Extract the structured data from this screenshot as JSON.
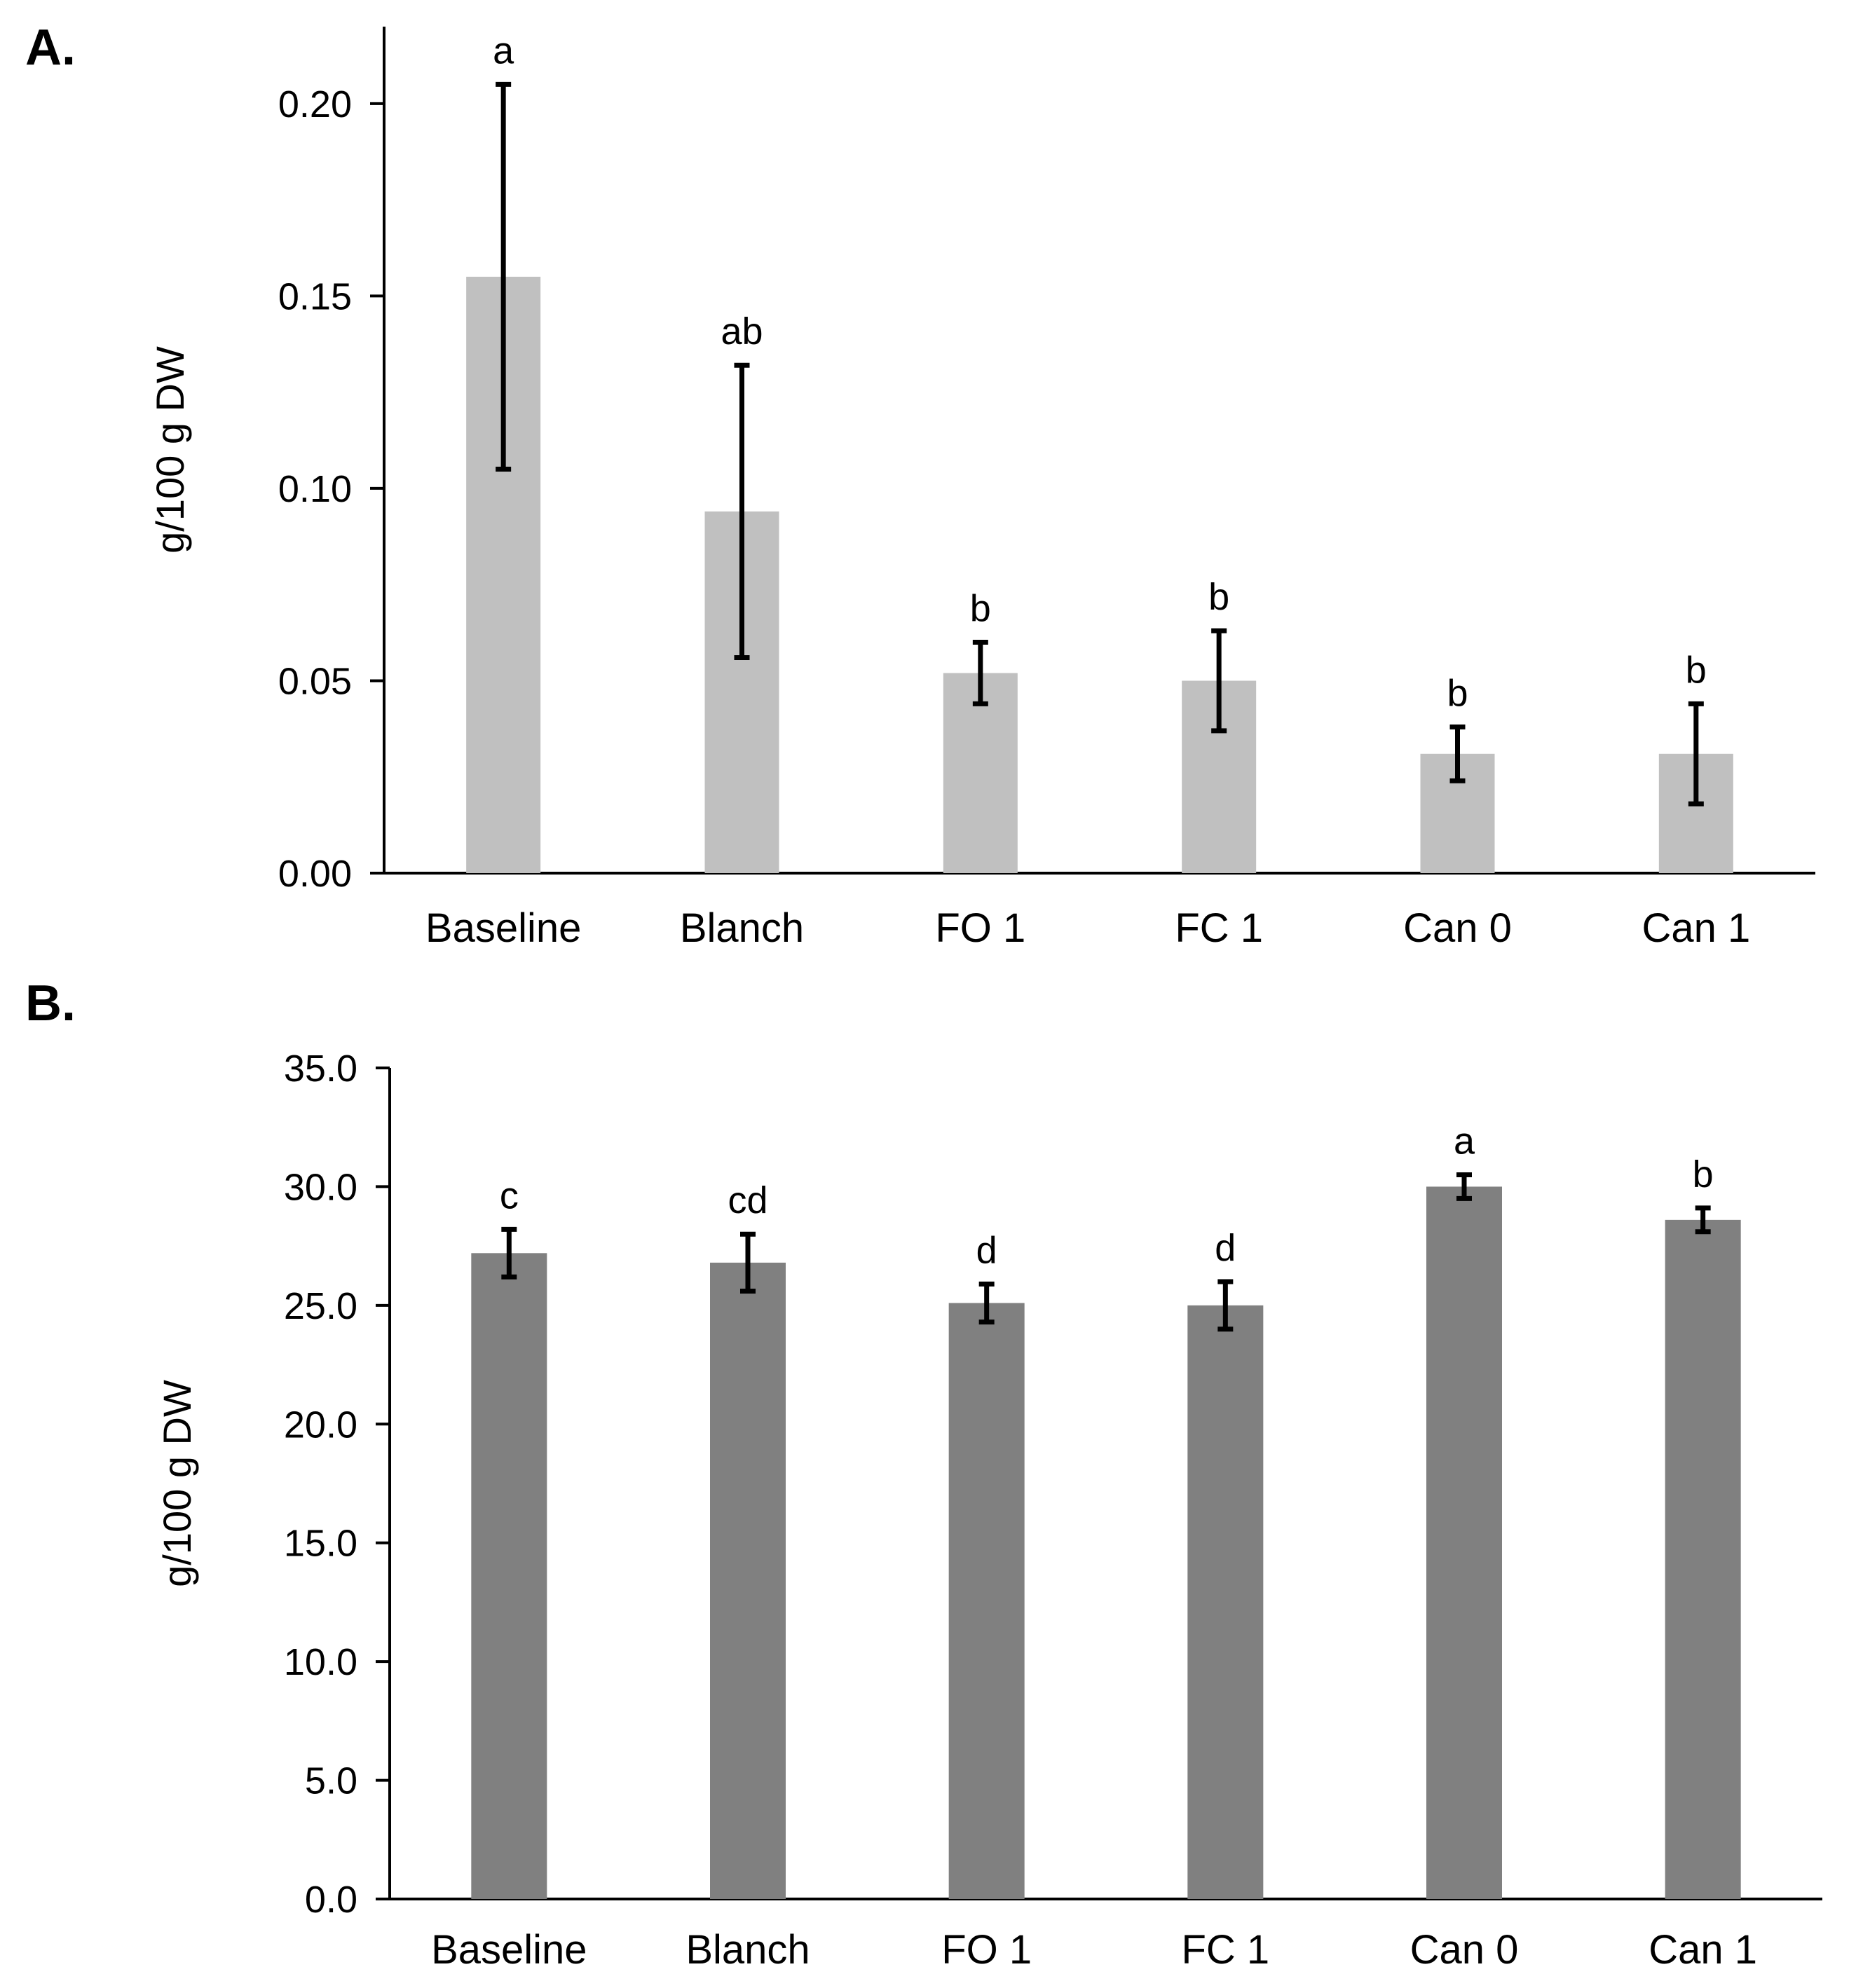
{
  "figure": {
    "panels": [
      "A.",
      "B."
    ]
  },
  "chart_data": [
    {
      "type": "bar",
      "panel_label": "A.",
      "title": "",
      "xlabel": "",
      "ylabel": "g/100 g DW",
      "ylim": [
        0,
        0.22
      ],
      "yticks": [
        0,
        0.05,
        0.1,
        0.15,
        0.2
      ],
      "ytick_labels": [
        "0.00",
        "0.05",
        "0.10",
        "0.15",
        "0.20"
      ],
      "categories": [
        "Baseline",
        "Blanch",
        "FO 1",
        "FC 1",
        "Can 0",
        "Can 1"
      ],
      "values": [
        0.155,
        0.094,
        0.052,
        0.05,
        0.031,
        0.031
      ],
      "error": [
        0.05,
        0.038,
        0.008,
        0.013,
        0.007,
        0.013
      ],
      "significance": [
        "a",
        "ab",
        "b",
        "b",
        "b",
        "b"
      ],
      "bar_color": "#c0c0c0",
      "grid": false,
      "legend": "none"
    },
    {
      "type": "bar",
      "panel_label": "B.",
      "title": "",
      "xlabel": "",
      "ylabel": "g/100 g DW",
      "ylim": [
        0,
        35
      ],
      "yticks": [
        0,
        5,
        10,
        15,
        20,
        25,
        30,
        35
      ],
      "ytick_labels": [
        "0.0",
        "5.0",
        "10.0",
        "15.0",
        "20.0",
        "25.0",
        "30.0",
        "35.0"
      ],
      "categories": [
        "Baseline",
        "Blanch",
        "FO 1",
        "FC 1",
        "Can 0",
        "Can 1"
      ],
      "values": [
        27.2,
        26.8,
        25.1,
        25.0,
        30.0,
        28.6
      ],
      "error": [
        1.0,
        1.2,
        0.8,
        1.0,
        0.5,
        0.5
      ],
      "significance": [
        "c",
        "cd",
        "d",
        "d",
        "a",
        "b"
      ],
      "bar_color": "#808080",
      "grid": false,
      "legend": "none"
    }
  ]
}
